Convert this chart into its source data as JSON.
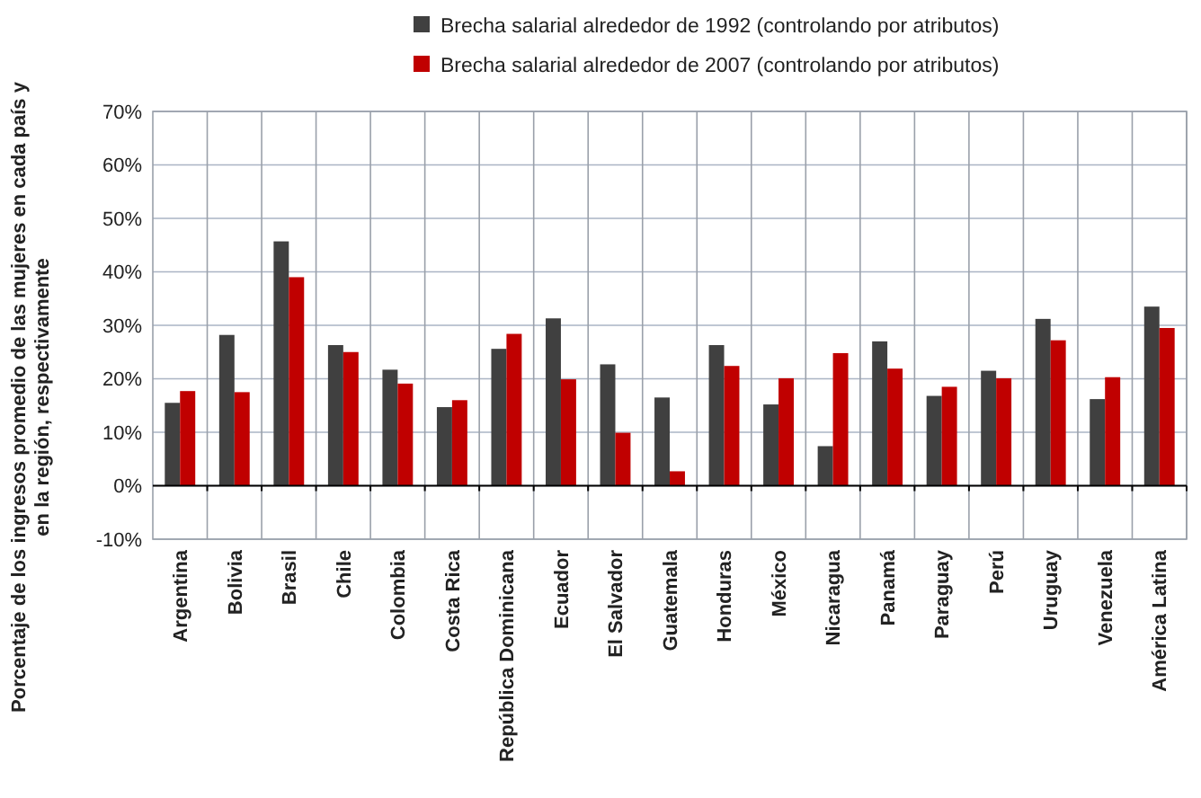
{
  "chart_data": {
    "type": "bar",
    "ylabel": "Porcentaje de los ingresos promedio de las mujeres en cada país y en la región, respectivamente",
    "categories": [
      "Argentina",
      "Bolivia",
      "Brasil",
      "Chile",
      "Colombia",
      "Costa Rica",
      "República Dominicana",
      "Ecuador",
      "El Salvador",
      "Guatemala",
      "Honduras",
      "México",
      "Nicaragua",
      "Panamá",
      "Paraguay",
      "Perú",
      "Uruguay",
      "Venezuela",
      "América Latina"
    ],
    "series": [
      {
        "name": "Brecha salarial alrededor de 1992 (controlando por atributos)",
        "color": "#404040",
        "values": [
          15.5,
          28.2,
          45.7,
          26.3,
          21.7,
          14.7,
          25.6,
          31.3,
          22.7,
          16.5,
          26.3,
          15.2,
          7.4,
          27,
          16.8,
          21.5,
          31.2,
          16.2,
          33.5
        ]
      },
      {
        "name": "Brecha salarial alrededor de 2007 (controlando por atributos)",
        "color": "#c00000",
        "values": [
          17.7,
          17.5,
          39,
          25,
          19.1,
          16,
          28.4,
          19.9,
          9.9,
          2.7,
          22.4,
          20.1,
          24.8,
          21.9,
          18.5,
          20.1,
          27.2,
          20.3,
          29.5
        ]
      }
    ],
    "ylim": [
      -10,
      70
    ],
    "yticks": [
      {
        "value": -10,
        "label": "-10%"
      },
      {
        "value": 0,
        "label": "0%"
      },
      {
        "value": 10,
        "label": "10%"
      },
      {
        "value": 20,
        "label": "20%"
      },
      {
        "value": 30,
        "label": "30%"
      },
      {
        "value": 40,
        "label": "40%"
      },
      {
        "value": 50,
        "label": "50%"
      },
      {
        "value": 60,
        "label": "60%"
      },
      {
        "value": 70,
        "label": "70%"
      }
    ],
    "grid": true,
    "legend": "top"
  }
}
